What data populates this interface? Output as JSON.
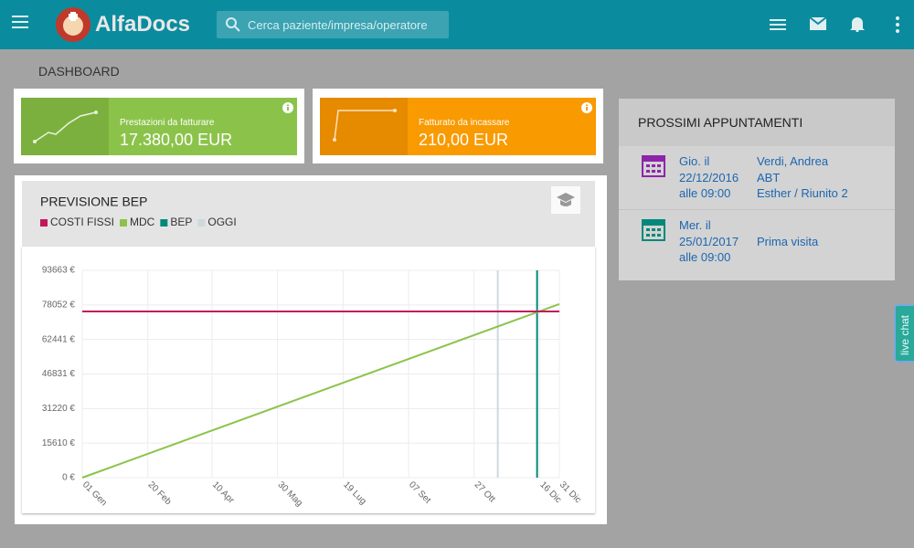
{
  "header": {
    "brand": "AlfaDocs",
    "search_placeholder": "Cerca paziente/impresa/operatore"
  },
  "page_title": "DASHBOARD",
  "cards": [
    {
      "label": "Prestazioni da fatturare",
      "value": "17.380,00 EUR"
    },
    {
      "label": "Fatturato da incassare",
      "value": "210,00 EUR"
    }
  ],
  "appointments": {
    "title": "PROSSIMI APPUNTAMENTI",
    "items": [
      {
        "day": "Gio. il",
        "date": "22/12/2016",
        "time": "alle 09:00",
        "patient": "Verdi, Andrea",
        "treatment": "ABT",
        "operator": "Esther / Riunito 2"
      },
      {
        "day": "Mer. il",
        "date": "25/01/2017",
        "time": "alle 09:00",
        "treatment": "Prima visita"
      }
    ]
  },
  "live_chat": "live chat",
  "chart_data": {
    "type": "line",
    "title": "PREVISIONE BEP",
    "grid": true,
    "xlim": [
      0,
      364
    ],
    "xticks": [
      {
        "value": 0,
        "label": "01 Gen"
      },
      {
        "value": 50,
        "label": "20 Feb"
      },
      {
        "value": 99,
        "label": "10 Apr"
      },
      {
        "value": 149,
        "label": "30 Mag"
      },
      {
        "value": 199,
        "label": "19 Lug"
      },
      {
        "value": 249,
        "label": "07 Set"
      },
      {
        "value": 299,
        "label": "27 Ott"
      },
      {
        "value": 349,
        "label": "16 Dic"
      },
      {
        "value": 364,
        "label": "31 Dic"
      }
    ],
    "ylim": [
      0,
      93663
    ],
    "yticks": [
      {
        "value": 0,
        "label": "0 €"
      },
      {
        "value": 15610,
        "label": "15610 €"
      },
      {
        "value": 31220,
        "label": "31220 €"
      },
      {
        "value": 46831,
        "label": "46831 €"
      },
      {
        "value": 62441,
        "label": "62441 €"
      },
      {
        "value": 78052,
        "label": "78052 €"
      },
      {
        "value": 93663,
        "label": "93663 €"
      }
    ],
    "series": [
      {
        "name": "COSTI FISSI",
        "color": "#c2185b",
        "x": [
          0,
          364
        ],
        "values": [
          75100,
          75100
        ]
      },
      {
        "name": "MDC",
        "color": "#8bc34a",
        "x": [
          0,
          364
        ],
        "values": [
          0,
          78400
        ]
      },
      {
        "name": "BEP",
        "color": "#00897b",
        "x": [
          347,
          347
        ],
        "values": [
          0,
          93663
        ]
      },
      {
        "name": "OGGI",
        "color": "#cfd8dc",
        "x": [
          317,
          317
        ],
        "values": [
          0,
          93663
        ]
      }
    ]
  }
}
